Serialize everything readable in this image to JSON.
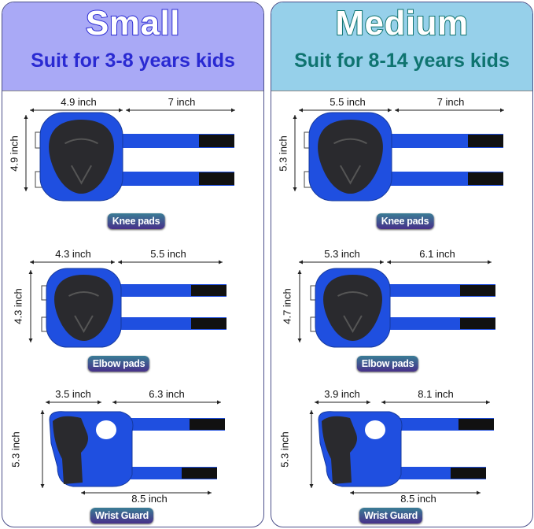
{
  "sizes": [
    {
      "title": "Small",
      "subtitle": "Suit for 3-8 years kids",
      "header_color": "#a9a9f6",
      "text_color": "#2a2ad2",
      "knee": {
        "label": "Knee pads",
        "pad_width": "4.9 inch",
        "strap_length": "7 inch",
        "height": "4.9 inch"
      },
      "elbow": {
        "label": "Elbow pads",
        "pad_width": "4.3 inch",
        "strap_length": "5.5 inch",
        "height": "4.3 inch"
      },
      "wrist": {
        "label": "Wrist Guard",
        "pad_width": "3.5 inch",
        "strap_length": "6.3 inch",
        "height": "5.3 inch",
        "total_length": "8.5 inch"
      }
    },
    {
      "title": "Medium",
      "subtitle": "Suit for 8-14 years kids",
      "header_color": "#96d0ea",
      "text_color": "#0f7470",
      "knee": {
        "label": "Knee pads",
        "pad_width": "5.5 inch",
        "strap_length": "7 inch",
        "height": "5.3 inch"
      },
      "elbow": {
        "label": "Elbow pads",
        "pad_width": "5.3 inch",
        "strap_length": "6.1 inch",
        "height": "4.7 inch"
      },
      "wrist": {
        "label": "Wrist Guard",
        "pad_width": "3.9 inch",
        "strap_length": "8.1 inch",
        "height": "5.3 inch",
        "total_length": "8.5 inch"
      }
    }
  ],
  "colors": {
    "pad_blue": "#1f4fe0",
    "shell_black": "#2a2a2e",
    "strap_black": "#111111"
  }
}
